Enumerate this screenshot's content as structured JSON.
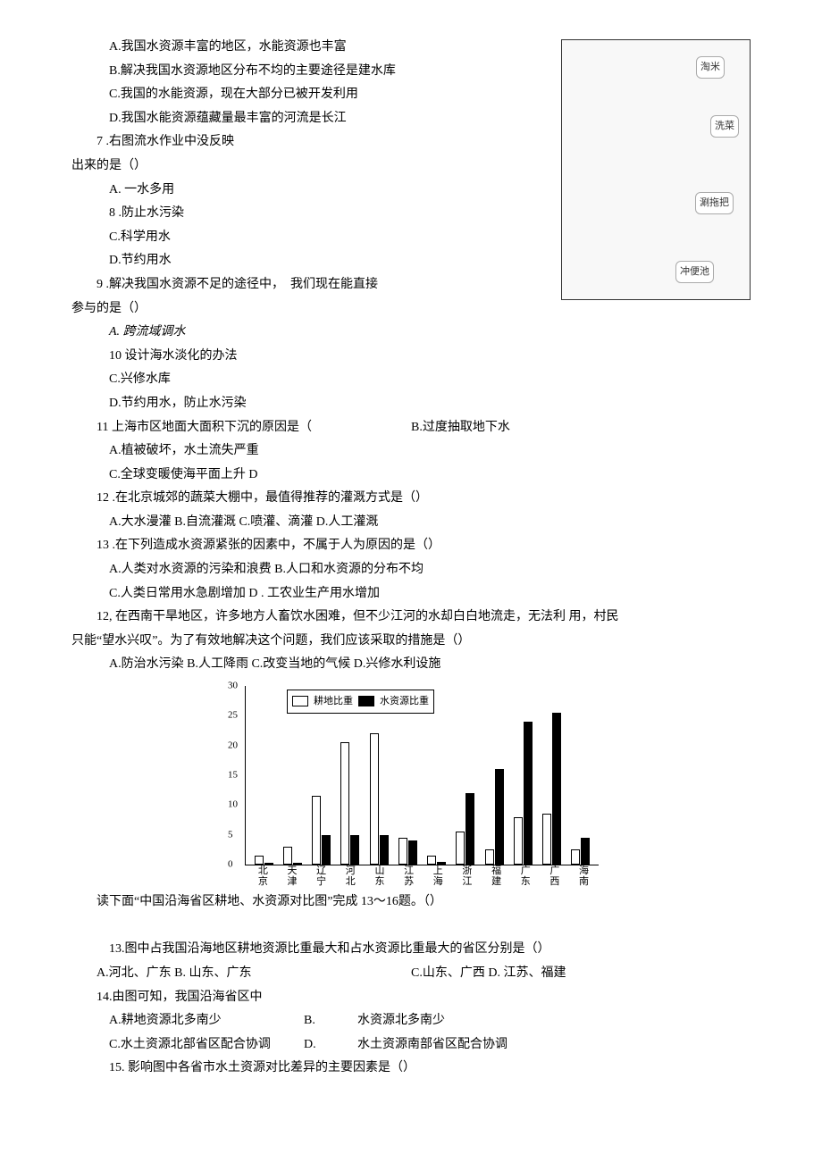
{
  "q6": {
    "A": "A.我国水资源丰富的地区，水能资源也丰富",
    "B": "B.解决我国水资源地区分布不均的主要途径是建水库",
    "C": "C.我国的水能资源，现在大部分已被开发利用",
    "D": "D.我国水能资源蕴藏量最丰富的河流是长江"
  },
  "q7": {
    "stem1": "7 .右图流水作业中没反映",
    "stem2": "出来的是（）",
    "A": "A. 一水多用",
    "B": "8 .防止水污染",
    "C": "C.科学用水",
    "D": "D.节约用水"
  },
  "q9": {
    "stem1": "9 .解决我国水资源不足的途径中，　我们现在能直接",
    "stem2": "参与的是（）",
    "A": "A. 跨流域调水",
    "B": "10 设计海水淡化的办法",
    "C": "C.兴修水库",
    "D": "D.节约用水，防止水污染"
  },
  "q11": {
    "stem": "11 上海市区地面大面积下沉的原因是（",
    "B": "B.过度抽取地下水",
    "A": "A.植被破坏，水土流失严重",
    "C": "C.全球变暖使海平面上升 D"
  },
  "q12": {
    "stem": "12 .在北京城郊的蔬菜大棚中，最值得推荐的灌溉方式是（）",
    "opts": "A.大水漫灌 B.自流灌溉 C.喷灌、滴灌 D.人工灌溉"
  },
  "q13a": {
    "stem": "13 .在下列造成水资源紧张的因素中，不属于人为原因的是（）",
    "l1": "A.人类对水资源的污染和浪费 B.人口和水资源的分布不均",
    "l2": "C.人类日常用水急剧增加 D . 工农业生产用水增加"
  },
  "q12b": {
    "l1": "12, 在西南干旱地区，许多地方人畜饮水困难，但不少江河的水却白白地流走，无法利 用，村民",
    "l2": "只能“望水兴叹”。为了有效地解决这个问题，我们应该采取的措施是（）",
    "opts": "A.防治水污染 B.人工降雨 C.改变当地的气候 D.兴修水利设施"
  },
  "img": {
    "labels": {
      "taomi": "淘米",
      "xicai": "洗菜",
      "tuoba": "涮拖把",
      "chongbian": "冲便池"
    }
  },
  "chart": {
    "ylim": [
      0,
      30
    ],
    "ytick_step": 5,
    "legend": {
      "white": "耕地比重",
      "black": "水资源比重"
    },
    "categories": [
      "北京",
      "天津",
      "辽宁",
      "河北",
      "山东",
      "江苏",
      "上海",
      "浙江",
      "福建",
      "广东",
      "广西",
      "海南"
    ],
    "land": [
      1.5,
      3.0,
      11.5,
      20.5,
      22.0,
      4.5,
      1.5,
      5.5,
      2.5,
      8.0,
      8.5,
      2.5
    ],
    "water": [
      0.3,
      0.3,
      5.0,
      5.0,
      5.0,
      4.0,
      0.5,
      12.0,
      16.0,
      24.0,
      25.5,
      4.5
    ],
    "land_color": "#ffffff",
    "water_color": "#000000",
    "border_color": "#000000"
  },
  "chart_caption": "读下面“中国沿海省区耕地、水资源对比图”完成 13〜16题。（）",
  "q13": {
    "stem": "13.图中占我国沿海地区耕地资源比重最大和占水资源比重最大的省区分别是（）",
    "left": "A.河北、广东  B. 山东、广东",
    "right": "C.山东、广西  D. 江苏、福建"
  },
  "q14": {
    "stem": "14.由图可知，我国沿海省区中",
    "A": "A.耕地资源北多南少",
    "Blabel": "B.",
    "Btext": "水资源北多南少",
    "C": "C.水土资源北部省区配合协调",
    "Dlabel": "D.",
    "Dtext": "水土资源南部省区配合协调"
  },
  "q15": {
    "stem": "15. 影响图中各省市水土资源对比差异的主要因素是（）"
  }
}
